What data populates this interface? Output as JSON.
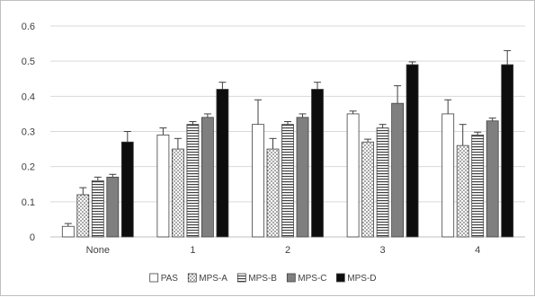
{
  "chart_data": {
    "type": "bar",
    "categories": [
      "None",
      "1",
      "2",
      "3",
      "4"
    ],
    "series": [
      {
        "name": "PAS",
        "values": [
          0.03,
          0.29,
          0.32,
          0.35,
          0.35
        ],
        "errors": [
          0.008,
          0.02,
          0.07,
          0.008,
          0.04
        ],
        "fill": "white"
      },
      {
        "name": "MPS-A",
        "values": [
          0.12,
          0.25,
          0.25,
          0.27,
          0.26
        ],
        "errors": [
          0.02,
          0.03,
          0.03,
          0.008,
          0.06
        ],
        "fill": "dots"
      },
      {
        "name": "MPS-B",
        "values": [
          0.16,
          0.32,
          0.32,
          0.31,
          0.29
        ],
        "errors": [
          0.01,
          0.008,
          0.008,
          0.01,
          0.008
        ],
        "fill": "hlines"
      },
      {
        "name": "MPS-C",
        "values": [
          0.17,
          0.34,
          0.34,
          0.38,
          0.33
        ],
        "errors": [
          0.008,
          0.01,
          0.01,
          0.05,
          0.008
        ],
        "fill": "gray"
      },
      {
        "name": "MPS-D",
        "values": [
          0.27,
          0.42,
          0.42,
          0.49,
          0.49
        ],
        "errors": [
          0.03,
          0.02,
          0.02,
          0.008,
          0.04
        ],
        "fill": "black"
      }
    ],
    "y_ticks": [
      "0",
      "0.1",
      "0.2",
      "0.3",
      "0.4",
      "0.5",
      "0.6"
    ],
    "ylim": [
      0,
      0.6
    ],
    "title": "",
    "xlabel": "",
    "ylabel": "",
    "grid": true,
    "legend_position": "bottom",
    "colors": {
      "gray_fill": "#7f7f7f",
      "black_fill": "#0d0d0d",
      "gridline": "#d9d9d9",
      "axis": "#bfbfbf",
      "outline": "#404040"
    }
  }
}
